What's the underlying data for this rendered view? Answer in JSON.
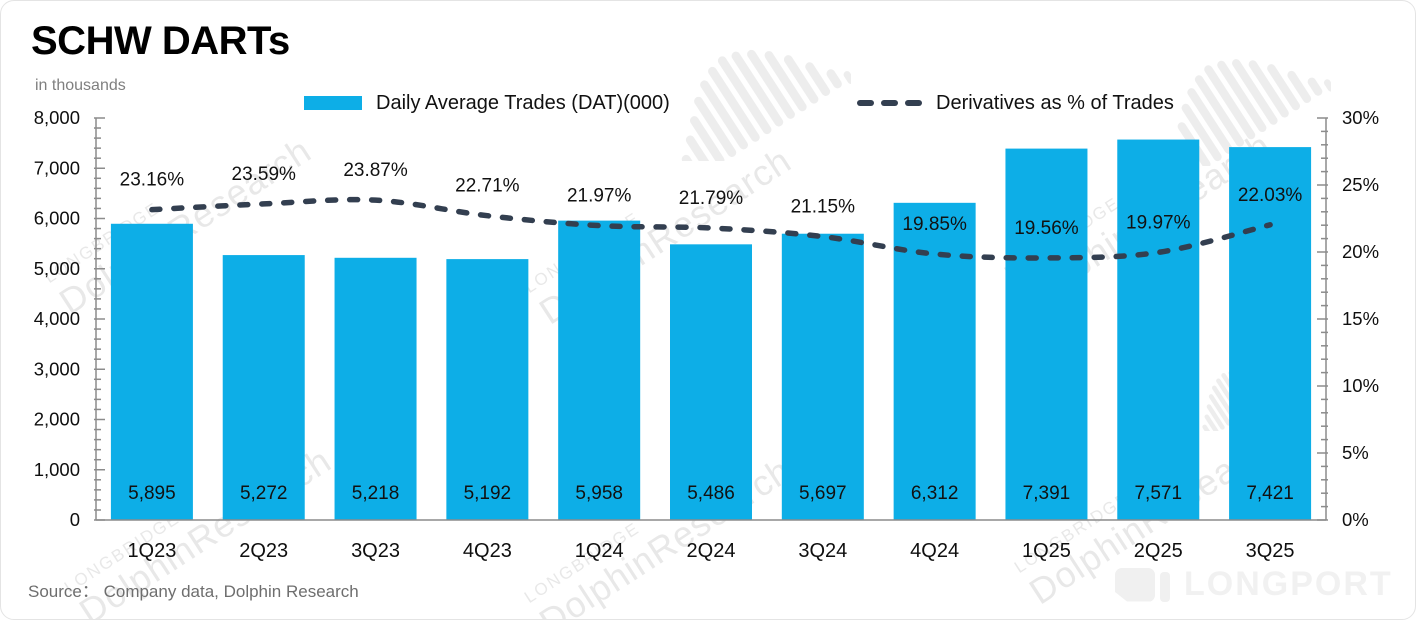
{
  "header": {
    "title": "SCHW DARTs",
    "subtitle": "in thousands"
  },
  "legend": {
    "bar_label": "Daily Average Trades (DAT)(000)",
    "line_label": "Derivatives as % of Trades"
  },
  "footer": {
    "source": "Source： Company data, Dolphin Research",
    "brand": "LONGPORT"
  },
  "watermark": {
    "line1": "LONGBRIDGE",
    "line2": "DolphinResearch"
  },
  "colors": {
    "bar": "#0DAEE7",
    "line": "#333F50",
    "axis": "#8C8C8C",
    "label": "#111111",
    "subtitle": "#7F7F7F",
    "source": "#6E6E6E",
    "watermark": "#D6D6D6",
    "brand": "#F1F1F1"
  },
  "chart_data": {
    "type": "bar",
    "title": "SCHW DARTs",
    "subtitle": "in thousands",
    "categories": [
      "1Q23",
      "2Q23",
      "3Q23",
      "4Q23",
      "1Q24",
      "2Q24",
      "3Q24",
      "4Q24",
      "1Q25",
      "2Q25",
      "3Q25"
    ],
    "series": [
      {
        "name": "Daily Average Trades (DAT)(000)",
        "type": "bar",
        "axis": "left",
        "values": [
          5895,
          5272,
          5218,
          5192,
          5958,
          5486,
          5697,
          6312,
          7391,
          7571,
          7421
        ],
        "labels": [
          "5,895",
          "5,272",
          "5,218",
          "5,192",
          "5,958",
          "5,486",
          "5,697",
          "6,312",
          "7,391",
          "7,571",
          "7,421"
        ]
      },
      {
        "name": "Derivatives as % of Trades",
        "type": "line",
        "style": "dashed",
        "axis": "right",
        "values": [
          23.16,
          23.59,
          23.87,
          22.71,
          21.97,
          21.79,
          21.15,
          19.85,
          19.56,
          19.97,
          22.03
        ],
        "labels": [
          "23.16%",
          "23.59%",
          "23.87%",
          "22.71%",
          "21.97%",
          "21.79%",
          "21.15%",
          "19.85%",
          "19.56%",
          "19.97%",
          "22.03%"
        ]
      }
    ],
    "left_axis": {
      "min": 0,
      "max": 8000,
      "major_step": 1000,
      "minor_step": 200,
      "tick_labels": [
        "0",
        "1,000",
        "2,000",
        "3,000",
        "4,000",
        "5,000",
        "6,000",
        "7,000",
        "8,000"
      ]
    },
    "right_axis": {
      "min": 0,
      "max": 30,
      "major_step": 5,
      "minor_step": 1,
      "tick_labels": [
        "0%",
        "5%",
        "10%",
        "15%",
        "20%",
        "25%",
        "30%"
      ]
    },
    "grid": false,
    "legend_position": "top"
  }
}
